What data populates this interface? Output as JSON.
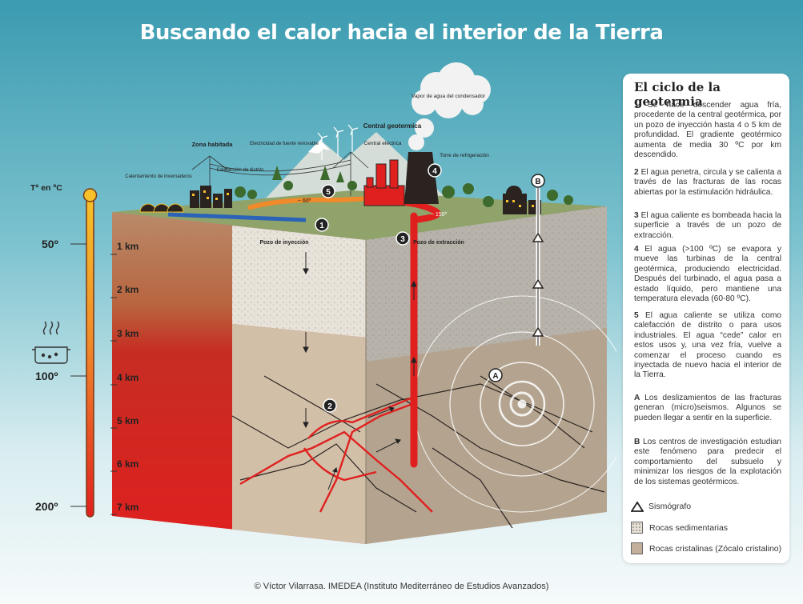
{
  "title": "Buscando el calor hacia el interior de la Tierra",
  "temperature_scale": {
    "label": "Tª en ºC",
    "ticks": [
      "50º",
      "100º",
      "200º"
    ]
  },
  "depth_ticks": [
    "1 km",
    "2 km",
    "3 km",
    "4 km",
    "5 km",
    "6 km",
    "7 km"
  ],
  "diagram_labels": {
    "vapor": "Vapor de agua del condensador",
    "central_geotermica": "Central geotermica",
    "central_electrica": "Central eléctrica",
    "torre": "Torre de refrigeración",
    "zona_habitada": "Zona habitada",
    "electricidad": "Electricidad de fuente renovable",
    "calefaccion": "Calefacción de distrito",
    "calentamiento": "Calentamiento de invernaderos",
    "pozo_inyeccion": "Pozo de inyección",
    "pozo_extraccion": "Pozo de extracción",
    "temp_60": "~ 60º",
    "temp_150": "~ 150º"
  },
  "step_markers": [
    "1",
    "2",
    "3",
    "4",
    "5",
    "A",
    "B"
  ],
  "panel": {
    "heading": "El ciclo de la geotermia",
    "steps": [
      {
        "num": "1",
        "text": "Se hace descender agua fría, procedente de la central geotérmica, por un pozo de inyección hasta 4 o 5 km de profundidad. El gradiente geotérmico aumenta de media 30 ºC por km descendido."
      },
      {
        "num": "2",
        "text": "El agua penetra, circula y se calienta a través de las fracturas de las rocas abiertas por la estimulación hidráulica."
      },
      {
        "num": "3",
        "text": "El agua caliente es bombeada hacia la superficie a través de un pozo de extracción."
      },
      {
        "num": "4",
        "text": "El agua (>100 ºC) se evapora y mueve las turbinas de la central geotérmica, produciendo electricidad. Después del turbinado, el agua pasa a estado líquido, pero mantiene una temperatura elevada (60-80 ºC)."
      },
      {
        "num": "5",
        "text": "El agua caliente se utiliza como calefacción de distrito o para usos industriales. El agua “cede” calor en estos usos y, una vez fría, vuelve a comenzar el proceso cuando es inyectada de nuevo hacia el interior de la Tierra."
      },
      {
        "num": "A",
        "text": "Los deslizamientos de las fracturas generan (micro)seismos. Algunos se pueden llegar a sentir en la superficie."
      },
      {
        "num": "B",
        "text": "Los centros de investigación estudian este fenómeno para predecir el comportamiento del subsuelo y minimizar los riesgos de la explotación de los sistemas geotérmicos."
      }
    ],
    "legend": [
      {
        "label": "Sismógrafo"
      },
      {
        "label": "Rocas sedimentarias"
      },
      {
        "label": "Rocas cristalinas (Zócalo cristalino)"
      }
    ]
  },
  "credit": "© Víctor Vilarrasa. IMEDEA (Instituto Mediterráneo de Estudios Avanzados)",
  "colors": {
    "hot": "#e0201f",
    "cold": "#2a63b8",
    "sediment": "#e6e0d6",
    "crystalline": "#c4b09a",
    "grass": "#8fa36a"
  }
}
